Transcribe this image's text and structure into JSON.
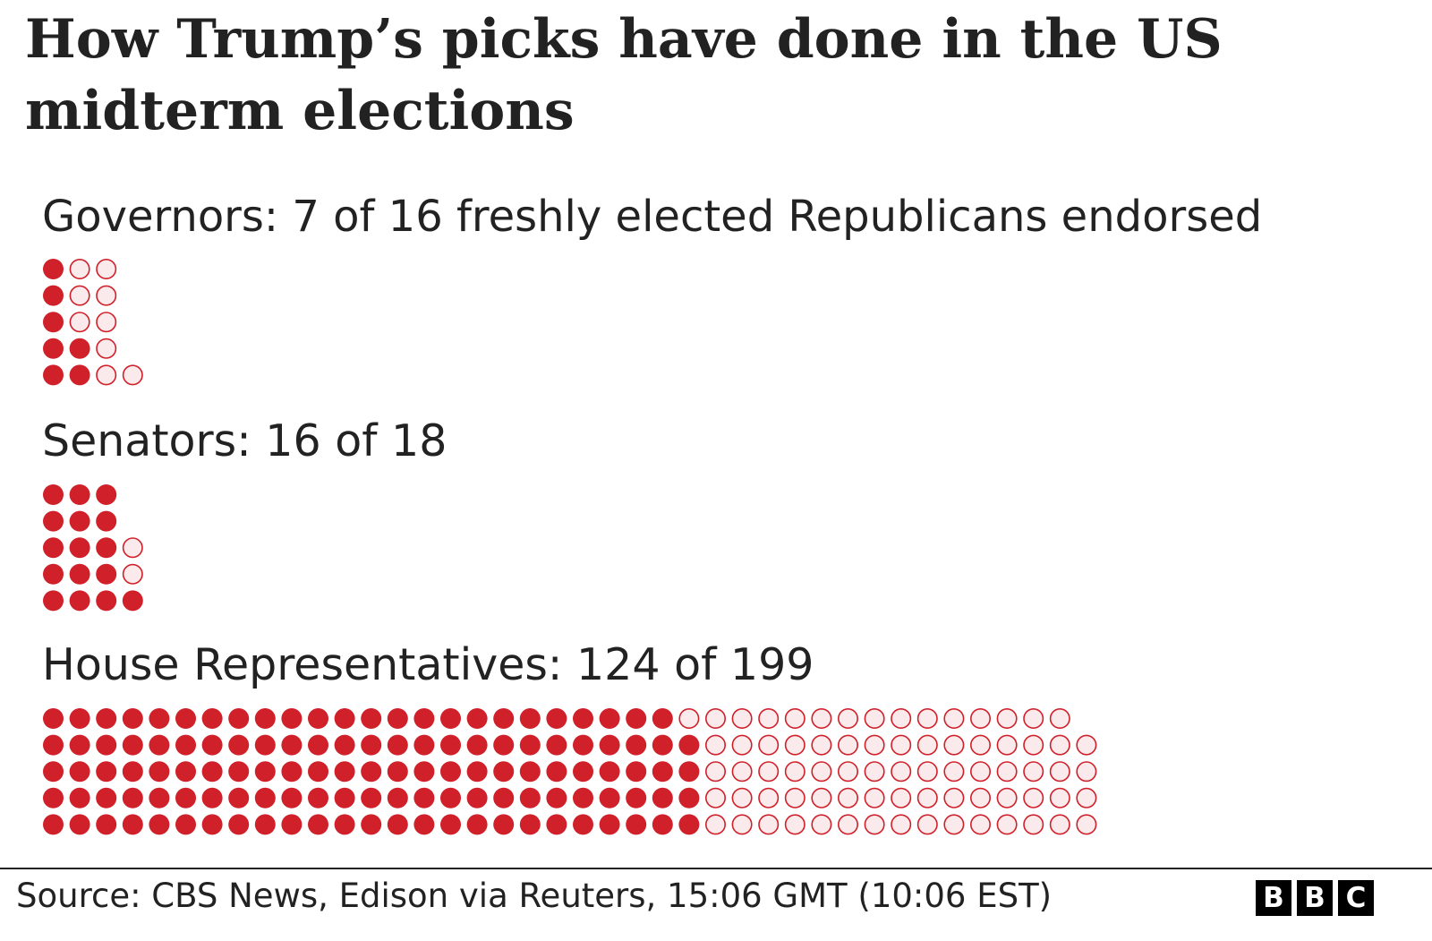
{
  "title": "How Trump’s picks have done in the US midterm elections",
  "colors": {
    "endorsed_fill": "#d0202a",
    "empty_fill": "#fbeaeb",
    "empty_stroke": "#d0202a",
    "text": "#222222"
  },
  "chart_data": [
    {
      "type": "waffle",
      "name": "governors",
      "label": "Governors: 7 of 16 freshly elected Republicans endorsed",
      "endorsed": 7,
      "total": 16,
      "rows": 5
    },
    {
      "type": "waffle",
      "name": "senators",
      "label": "Senators: 16 of 18",
      "endorsed": 16,
      "total": 18,
      "rows": 5
    },
    {
      "type": "waffle",
      "name": "house",
      "label": "House Representatives: 124 of 199",
      "endorsed": 124,
      "total": 199,
      "rows": 5
    }
  ],
  "footer": {
    "source": "Source: CBS News, Edison via Reuters, 15:06 GMT (10:06 EST)",
    "logo": [
      "B",
      "B",
      "C"
    ]
  }
}
